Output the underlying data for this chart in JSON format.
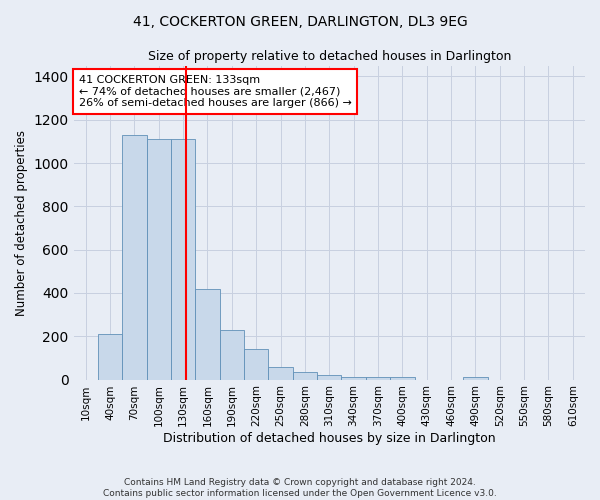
{
  "title": "41, COCKERTON GREEN, DARLINGTON, DL3 9EG",
  "subtitle": "Size of property relative to detached houses in Darlington",
  "xlabel": "Distribution of detached houses by size in Darlington",
  "ylabel": "Number of detached properties",
  "categories": [
    "10sqm",
    "40sqm",
    "70sqm",
    "100sqm",
    "130sqm",
    "160sqm",
    "190sqm",
    "220sqm",
    "250sqm",
    "280sqm",
    "310sqm",
    "340sqm",
    "370sqm",
    "400sqm",
    "430sqm",
    "460sqm",
    "490sqm",
    "520sqm",
    "550sqm",
    "580sqm",
    "610sqm"
  ],
  "values": [
    0,
    210,
    1130,
    1110,
    1110,
    420,
    230,
    140,
    60,
    35,
    20,
    10,
    10,
    10,
    0,
    0,
    10,
    0,
    0,
    0,
    0
  ],
  "bar_color": "#c8d8ea",
  "bar_edge_color": "#6090b8",
  "bar_width": 1.0,
  "vline_color": "red",
  "vline_linewidth": 1.5,
  "vline_pos": 4.1,
  "annotation_text": "41 COCKERTON GREEN: 133sqm\n← 74% of detached houses are smaller (2,467)\n26% of semi-detached houses are larger (866) →",
  "annotation_box_color": "white",
  "annotation_box_edge": "red",
  "ylim": [
    0,
    1450
  ],
  "yticks": [
    0,
    200,
    400,
    600,
    800,
    1000,
    1200,
    1400
  ],
  "grid_color": "#c8d0e0",
  "bg_color": "#e8edf5",
  "title_fontsize": 10,
  "subtitle_fontsize": 9,
  "ylabel_fontsize": 8.5,
  "xlabel_fontsize": 9,
  "footnote1": "Contains HM Land Registry data © Crown copyright and database right 2024.",
  "footnote2": "Contains public sector information licensed under the Open Government Licence v3.0."
}
